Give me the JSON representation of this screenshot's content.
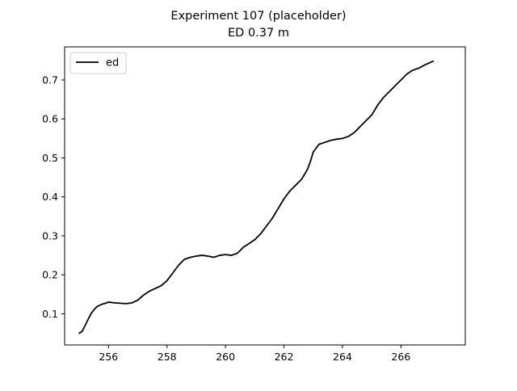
{
  "chart_data": {
    "type": "line",
    "title": "Experiment 107 (placeholder)",
    "subtitle": "ED 0.37 m",
    "xlabel": "",
    "ylabel": "",
    "xlim": [
      254.5,
      268.2
    ],
    "ylim": [
      0.02,
      0.785
    ],
    "xticks": [
      256,
      258,
      260,
      262,
      264,
      266
    ],
    "yticks": [
      0.1,
      0.2,
      0.3,
      0.4,
      0.5,
      0.6,
      0.7
    ],
    "grid": false,
    "legend": "top-left",
    "series": [
      {
        "name": "ed",
        "color": "#000000",
        "x": [
          255.0,
          255.1,
          255.2,
          255.3,
          255.4,
          255.5,
          255.6,
          255.7,
          255.8,
          255.9,
          256.0,
          256.2,
          256.4,
          256.6,
          256.8,
          257.0,
          257.2,
          257.4,
          257.6,
          257.8,
          258.0,
          258.2,
          258.4,
          258.6,
          258.8,
          259.0,
          259.2,
          259.4,
          259.6,
          259.8,
          260.0,
          260.2,
          260.4,
          260.5,
          260.6,
          260.8,
          261.0,
          261.2,
          261.4,
          261.6,
          261.8,
          262.0,
          262.2,
          262.4,
          262.6,
          262.8,
          262.9,
          263.0,
          263.2,
          263.4,
          263.6,
          263.8,
          264.0,
          264.2,
          264.4,
          264.6,
          264.8,
          265.0,
          265.2,
          265.4,
          265.6,
          265.8,
          266.0,
          266.2,
          266.4,
          266.6,
          266.8,
          267.0,
          267.1
        ],
        "values": [
          0.05,
          0.055,
          0.07,
          0.085,
          0.1,
          0.11,
          0.118,
          0.122,
          0.125,
          0.127,
          0.13,
          0.128,
          0.127,
          0.126,
          0.128,
          0.135,
          0.148,
          0.158,
          0.165,
          0.172,
          0.185,
          0.205,
          0.225,
          0.24,
          0.245,
          0.248,
          0.25,
          0.248,
          0.245,
          0.25,
          0.252,
          0.25,
          0.255,
          0.262,
          0.27,
          0.28,
          0.29,
          0.305,
          0.325,
          0.345,
          0.37,
          0.395,
          0.415,
          0.43,
          0.445,
          0.47,
          0.49,
          0.515,
          0.535,
          0.54,
          0.545,
          0.548,
          0.55,
          0.555,
          0.565,
          0.58,
          0.595,
          0.61,
          0.635,
          0.655,
          0.67,
          0.685,
          0.7,
          0.715,
          0.725,
          0.73,
          0.738,
          0.745,
          0.748
        ]
      }
    ]
  }
}
